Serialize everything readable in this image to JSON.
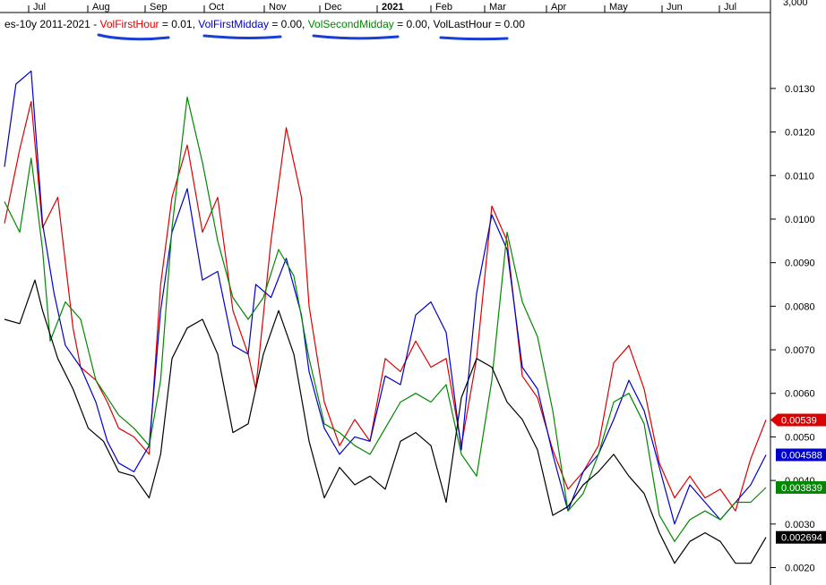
{
  "colors": {
    "background": "#ffffff",
    "axis": "#000000",
    "red": "#dd0000",
    "blue": "#0000cc",
    "green": "#008800",
    "black": "#000000",
    "annotation": "#1a3fd6"
  },
  "legend": {
    "prefix": "es-10y 2011-2021 - ",
    "items": [
      {
        "label": "VolFirstHour",
        "value_text": " = 0.01, ",
        "color": "#dd0000"
      },
      {
        "label": "VolFirstMidday",
        "value_text": " = 0.00, ",
        "color": "#0000cc"
      },
      {
        "label": "VolSecondMidday",
        "value_text": " = 0.00, ",
        "color": "#008800"
      },
      {
        "label": "VolLastHour",
        "value_text": " = 0.00",
        "color": "#000000"
      }
    ]
  },
  "chart_data": {
    "type": "line",
    "title": "es-10y 2011-2021",
    "x_months": [
      "Jul",
      "Aug",
      "Sep",
      "Oct",
      "Nov",
      "Dec",
      "2021",
      "Feb",
      "Mar",
      "Apr",
      "May",
      "Jun",
      "Jul"
    ],
    "x_month_bold": [
      false,
      false,
      false,
      false,
      false,
      false,
      true,
      false,
      false,
      false,
      false,
      false,
      false
    ],
    "top_right_tick": "3,000",
    "y_ticks": [
      "0.0130",
      "0.0120",
      "0.0110",
      "0.0100",
      "0.0090",
      "0.0080",
      "0.0070",
      "0.0060",
      "0.0050",
      "0.0040",
      "0.0030",
      "0.0020"
    ],
    "y_tick_values": [
      0.013,
      0.012,
      0.011,
      0.01,
      0.009,
      0.008,
      0.007,
      0.006,
      0.005,
      0.004,
      0.003,
      0.002
    ],
    "ylim": [
      0.0016,
      0.01425
    ],
    "x_domain": [
      0,
      100
    ],
    "grid": false,
    "legend_position": "top-left",
    "series": [
      {
        "name": "VolFirstHour",
        "color": "#dd0000",
        "last_value": "0.00539",
        "x": [
          0,
          2,
          3.5,
          5,
          7,
          9,
          10,
          12,
          13.5,
          15,
          17,
          19,
          20.5,
          22,
          24,
          26,
          28,
          30,
          32,
          33,
          35,
          37,
          39,
          40,
          42,
          44,
          46,
          48,
          50,
          52,
          54,
          56,
          58,
          60,
          62,
          64,
          66,
          68,
          70,
          72,
          74,
          76,
          78,
          80,
          82,
          84,
          86,
          88,
          90,
          92,
          94,
          96,
          98,
          100
        ],
        "y": [
          0.0099,
          0.0116,
          0.0127,
          0.0098,
          0.0105,
          0.0075,
          0.0066,
          0.0063,
          0.0058,
          0.0052,
          0.005,
          0.0046,
          0.0085,
          0.0105,
          0.0117,
          0.0097,
          0.0105,
          0.0079,
          0.0069,
          0.0061,
          0.0095,
          0.0121,
          0.0105,
          0.008,
          0.0058,
          0.0048,
          0.0054,
          0.0049,
          0.0068,
          0.0065,
          0.0072,
          0.0066,
          0.0068,
          0.0048,
          0.0068,
          0.0103,
          0.0095,
          0.0064,
          0.0059,
          0.0047,
          0.0038,
          0.0042,
          0.0048,
          0.0067,
          0.0071,
          0.0061,
          0.0044,
          0.0036,
          0.0041,
          0.0036,
          0.0038,
          0.0033,
          0.0045,
          0.00539
        ]
      },
      {
        "name": "VolFirstMidday",
        "color": "#0000cc",
        "last_value": "0.004588",
        "x": [
          0,
          1.5,
          3.5,
          5,
          6.5,
          8,
          10,
          12,
          13.5,
          15,
          17,
          19,
          20.5,
          22,
          24,
          26,
          28,
          30,
          32,
          33,
          35,
          37,
          39,
          40,
          42,
          44,
          46,
          48,
          50,
          52,
          54,
          56,
          58,
          60,
          62,
          64,
          66,
          68,
          70,
          72,
          74,
          76,
          78,
          80,
          82,
          84,
          86,
          88,
          90,
          92,
          94,
          96,
          98,
          100
        ],
        "y": [
          0.0112,
          0.0131,
          0.0134,
          0.0099,
          0.0083,
          0.0071,
          0.0066,
          0.0058,
          0.0049,
          0.0044,
          0.0042,
          0.0048,
          0.0079,
          0.0097,
          0.0107,
          0.0086,
          0.0088,
          0.0071,
          0.0069,
          0.0085,
          0.0082,
          0.0091,
          0.0078,
          0.0065,
          0.0052,
          0.0046,
          0.005,
          0.0049,
          0.0064,
          0.0062,
          0.0078,
          0.0081,
          0.0074,
          0.0047,
          0.0083,
          0.0101,
          0.0093,
          0.0066,
          0.0061,
          0.0046,
          0.0033,
          0.0042,
          0.0046,
          0.0054,
          0.0063,
          0.0056,
          0.0043,
          0.003,
          0.0039,
          0.0035,
          0.0031,
          0.0035,
          0.0039,
          0.004588
        ]
      },
      {
        "name": "VolSecondMidday",
        "color": "#008800",
        "last_value": "0.003839",
        "x": [
          0,
          2,
          3.5,
          5,
          6,
          8,
          10,
          12,
          13.5,
          15,
          17,
          19,
          20.5,
          22,
          24,
          26,
          28,
          30,
          32,
          34,
          36,
          38,
          40,
          42,
          44,
          46,
          48,
          50,
          52,
          54,
          56,
          58,
          60,
          62,
          64,
          66,
          68,
          70,
          72,
          74,
          76,
          78,
          80,
          82,
          84,
          86,
          88,
          90,
          92,
          94,
          96,
          98,
          100
        ],
        "y": [
          0.0104,
          0.0097,
          0.0114,
          0.0093,
          0.0072,
          0.0081,
          0.0077,
          0.0063,
          0.0059,
          0.0055,
          0.0052,
          0.0048,
          0.0063,
          0.0098,
          0.0128,
          0.0113,
          0.0095,
          0.0082,
          0.0077,
          0.0082,
          0.0093,
          0.0087,
          0.0068,
          0.0053,
          0.0051,
          0.0048,
          0.0046,
          0.0052,
          0.0058,
          0.006,
          0.0058,
          0.0062,
          0.0046,
          0.0041,
          0.0063,
          0.0097,
          0.0081,
          0.0073,
          0.0056,
          0.0033,
          0.0037,
          0.0046,
          0.0058,
          0.006,
          0.0053,
          0.0032,
          0.0026,
          0.0031,
          0.0033,
          0.0031,
          0.0035,
          0.0035,
          0.003839
        ]
      },
      {
        "name": "VolLastHour",
        "color": "#000000",
        "last_value": "0.002694",
        "x": [
          0,
          2,
          4,
          5,
          7,
          9,
          11,
          13,
          15,
          17,
          19,
          20.5,
          22,
          24,
          26,
          28,
          30,
          32,
          34,
          36,
          38,
          40,
          42,
          44,
          46,
          48,
          50,
          52,
          54,
          56,
          58,
          60,
          62,
          64,
          66,
          68,
          70,
          72,
          74,
          76,
          78,
          80,
          82,
          84,
          86,
          88,
          90,
          92,
          94,
          96,
          98,
          100
        ],
        "y": [
          0.0077,
          0.0076,
          0.0086,
          0.0079,
          0.0068,
          0.0061,
          0.0052,
          0.0049,
          0.0042,
          0.0041,
          0.0036,
          0.0046,
          0.0068,
          0.0075,
          0.0077,
          0.0069,
          0.0051,
          0.0053,
          0.0069,
          0.0079,
          0.0069,
          0.0049,
          0.0036,
          0.0043,
          0.0039,
          0.0041,
          0.0038,
          0.0049,
          0.0051,
          0.0048,
          0.0035,
          0.0059,
          0.0068,
          0.0066,
          0.0058,
          0.0054,
          0.0047,
          0.0032,
          0.0034,
          0.0039,
          0.0042,
          0.0046,
          0.0041,
          0.0037,
          0.0028,
          0.0021,
          0.0026,
          0.0028,
          0.0026,
          0.0021,
          0.0021,
          0.002694
        ]
      }
    ]
  }
}
